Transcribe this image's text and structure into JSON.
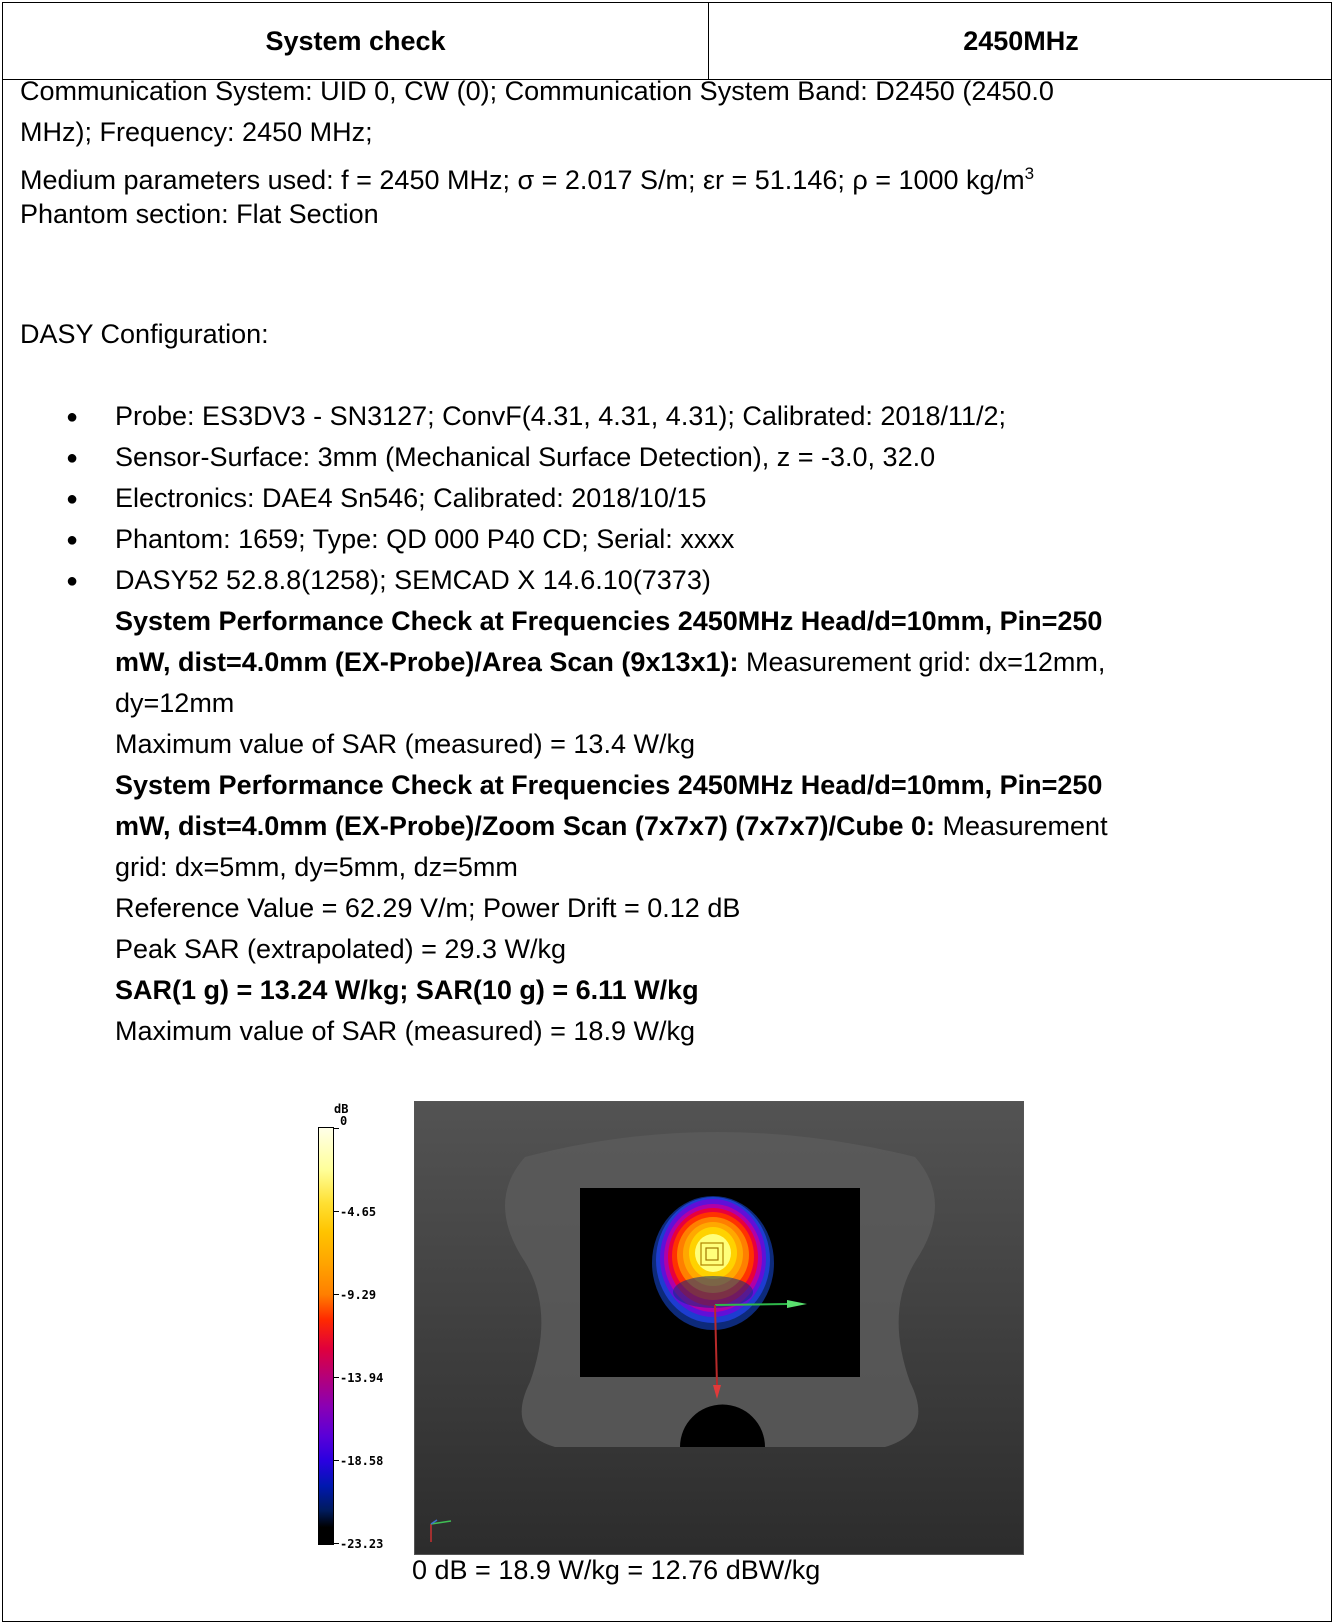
{
  "header": {
    "left": "System check",
    "right": "2450MHz"
  },
  "lines": {
    "comm1": "Communication System: UID 0, CW (0); Communication System Band: D2450 (2450.0",
    "comm2": "MHz); Frequency: 2450 MHz;",
    "medium": "Medium parameters used: f = 2450 MHz; σ = 2.017 S/m; εr = 51.146; ρ = 1000 kg/m",
    "medium_sup": "3",
    "phantom_section": "Phantom section: Flat Section",
    "dasy_config": "DASY Configuration:"
  },
  "bullets": [
    "Probe: ES3DV3 - SN3127; ConvF(4.31, 4.31, 4.31); Calibrated: 2018/11/2;",
    "Sensor-Surface: 3mm (Mechanical Surface Detection), z = -3.0, 32.0",
    "Electronics: DAE4 Sn546; Calibrated: 2018/10/15",
    "Phantom: 1659; Type: QD 000 P40 CD; Serial: xxxx",
    "DASY52 52.8.8(1258); SEMCAD X 14.6.10(7373)"
  ],
  "area_scan": {
    "title1": "System Performance Check at Frequencies 2450MHz Head/d=10mm, Pin=250",
    "title2": "mW, dist=4.0mm (EX-Probe)/Area Scan (9x13x1):",
    "grid2": " Measurement grid: dx=12mm,",
    "grid3": "dy=12mm",
    "max": "Maximum value of SAR (measured) = 13.4 W/kg"
  },
  "zoom_scan": {
    "title1": "System Performance Check at Frequencies 2450MHz Head/d=10mm, Pin=250",
    "title2": "mW, dist=4.0mm (EX-Probe)/Zoom Scan (7x7x7) (7x7x7)/Cube 0:",
    "grid2": " Measurement",
    "grid3": "grid: dx=5mm, dy=5mm, dz=5mm",
    "reference": "Reference Value = 62.29 V/m; Power Drift = 0.12 dB",
    "peak": "Peak SAR (extrapolated) = 29.3 W/kg",
    "sar": "SAR(1 g) = 13.24 W/kg; SAR(10 g) = 6.11 W/kg",
    "max": "Maximum value of SAR (measured) = 18.9 W/kg"
  },
  "colorbar": {
    "unit": "dB",
    "ticks": [
      "0",
      "-4.65",
      "-9.29",
      "-13.94",
      "-18.58",
      "-23.23"
    ]
  },
  "caption": "0 dB = 18.9 W/kg = 12.76 dBW/kg"
}
